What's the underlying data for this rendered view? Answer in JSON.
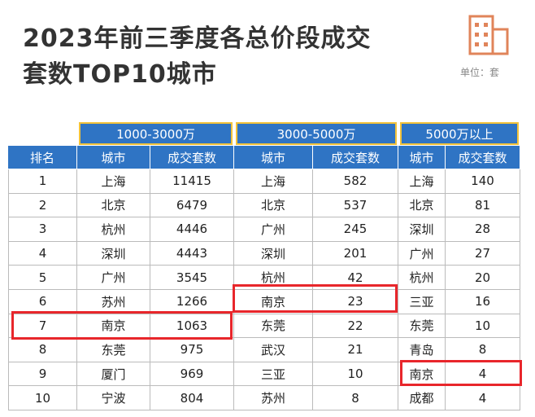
{
  "header": {
    "title_lines": [
      "2023年前三季度各总价段成交",
      "套数TOP10城市"
    ],
    "unit": "单位：套"
  },
  "table": {
    "groups": [
      "1000-3000万",
      "3000-5000万",
      "5000万以上"
    ],
    "columns": [
      "排名",
      "城市",
      "成交套数",
      "城市",
      "成交套数",
      "城市",
      "成交套数"
    ],
    "rows": [
      [
        1,
        "上海",
        11415,
        "上海",
        582,
        "上海",
        140
      ],
      [
        2,
        "北京",
        6479,
        "北京",
        537,
        "北京",
        81
      ],
      [
        3,
        "杭州",
        4446,
        "广州",
        245,
        "深圳",
        28
      ],
      [
        4,
        "深圳",
        4443,
        "深圳",
        201,
        "广州",
        27
      ],
      [
        5,
        "广州",
        3545,
        "杭州",
        42,
        "杭州",
        20
      ],
      [
        6,
        "苏州",
        1266,
        "南京",
        23,
        "三亚",
        16
      ],
      [
        7,
        "南京",
        1063,
        "东莞",
        22,
        "东莞",
        10
      ],
      [
        8,
        "东莞",
        975,
        "武汉",
        21,
        "青岛",
        8
      ],
      [
        9,
        "厦门",
        969,
        "三亚",
        10,
        "南京",
        4
      ],
      [
        10,
        "宁波",
        804,
        "苏州",
        8,
        "成都",
        4
      ]
    ]
  }
}
